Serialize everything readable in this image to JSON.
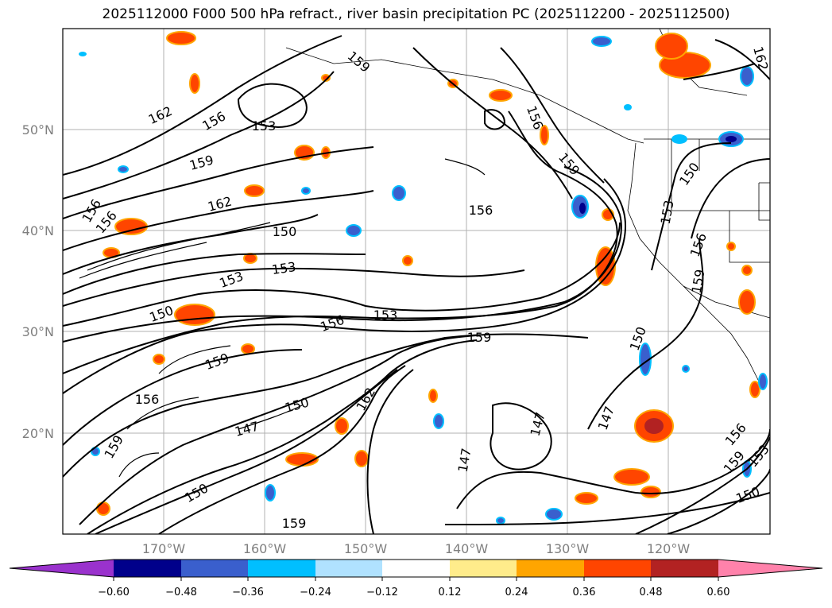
{
  "title": "2025112000 F000 500 hPa refract., river basin precipitation PC (2025112200 - 2025112500)",
  "map": {
    "lat_ticks": [
      "50°N",
      "40°N",
      "30°N",
      "20°N"
    ],
    "lon_ticks": [
      "170°W",
      "160°W",
      "150°W",
      "140°W",
      "130°W",
      "120°W"
    ],
    "contour_levels_labeled": [
      "147",
      "150",
      "153",
      "156",
      "159",
      "162"
    ]
  },
  "colorbar": {
    "colors": [
      "#9a32cd",
      "#00008b",
      "#3a5fcd",
      "#00bfff",
      "#b0e2ff",
      "#ffffff",
      "#ffec8b",
      "#ffa500",
      "#ff4500",
      "#b22222",
      "#ff82ab"
    ],
    "tick_labels": [
      "−0.60",
      "−0.48",
      "−0.36",
      "−0.24",
      "−0.12",
      "0.12",
      "0.24",
      "0.36",
      "0.48",
      "0.60"
    ]
  }
}
